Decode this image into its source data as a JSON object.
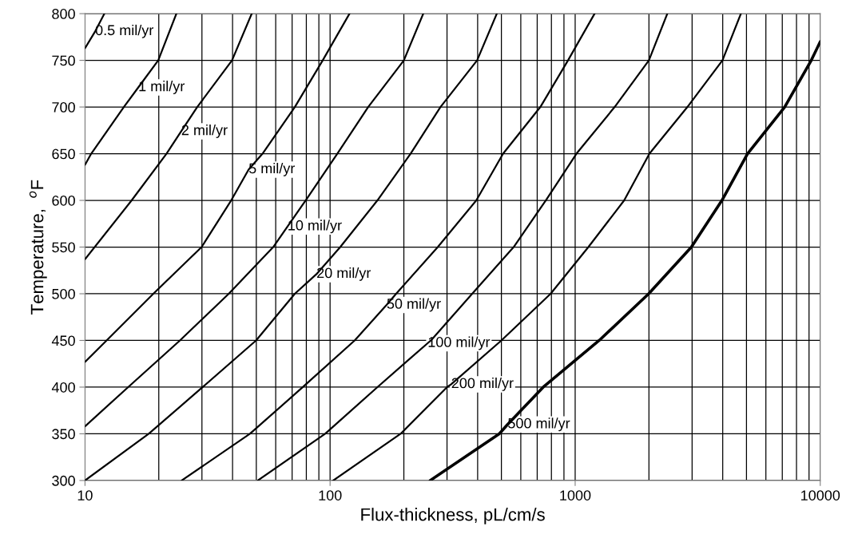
{
  "chart_data": {
    "type": "line",
    "xlabel": "Flux-thickness, pL/cm/s",
    "ylabel": "Temperature,  $^{o}$F",
    "log": "x",
    "xlim": [
      10,
      10000
    ],
    "xticks": [
      10,
      100,
      1000,
      10000
    ],
    "ylim": [
      300,
      800
    ],
    "yticks": [
      300,
      350,
      400,
      450,
      500,
      550,
      600,
      650,
      700,
      750,
      800
    ],
    "grid": true,
    "marker": "none",
    "line_style": "solid",
    "series": [
      {
        "color": "#000000",
        "x": [
          10,
          11,
          12
        ],
        "values": [
          763,
          781,
          800
        ]
      },
      {
        "color": "#000000",
        "x": [
          10,
          10.6,
          14.4,
          16.5,
          19.9,
          23.6
        ],
        "values": [
          638,
          650,
          700,
          721,
          750,
          800
        ]
      },
      {
        "color": "#000000",
        "x": [
          10,
          15.5,
          21.5,
          24.7,
          28.7,
          39.8,
          47.9
        ],
        "values": [
          537,
          600,
          650,
          674,
          700,
          750,
          800
        ]
      },
      {
        "color": "#000000",
        "x": [
          10,
          12.25,
          19,
          29.9,
          39.5,
          46.5,
          53,
          71.8,
          93.3,
          120
        ],
        "values": [
          427,
          450,
          500,
          550,
          600,
          633,
          650,
          700,
          750,
          800
        ]
      },
      {
        "color": "#000000",
        "x": [
          10,
          15,
          24.4,
          38.6,
          58.6,
          67,
          79.5,
          107,
          143,
          200,
          240
        ],
        "values": [
          358,
          400,
          450,
          500,
          550,
          572,
          600,
          650,
          700,
          750,
          800
        ]
      },
      {
        "color": "#000000",
        "x": [
          10,
          18.2,
          30.2,
          49.9,
          71.8,
          88,
          110,
          156,
          213,
          282,
          398,
          479
        ],
        "values": [
          300,
          350,
          400,
          450,
          500,
          521,
          550,
          600,
          650,
          700,
          750,
          800
        ]
      },
      {
        "color": "#000000",
        "x": [
          24.8,
          47.1,
          77.4,
          126,
          170,
          186,
          275,
          395,
          508,
          721,
          935,
          1200
        ],
        "values": [
          300,
          350,
          400,
          450,
          488,
          500,
          550,
          600,
          650,
          700,
          750,
          800
        ]
      },
      {
        "color": "#000000",
        "x": [
          50.7,
          95.5,
          156,
          250,
          258,
          380,
          561,
          759,
          1012,
          1449,
          1999,
          2377
        ],
        "values": [
          300,
          350,
          400,
          447,
          450,
          500,
          550,
          600,
          650,
          700,
          750,
          800
        ]
      },
      {
        "color": "#000000",
        "x": [
          103,
          194,
          300,
          312,
          500,
          794,
          1132,
          1585,
          2009,
          2870,
          3990,
          4745
        ],
        "values": [
          300,
          350,
          400,
          403,
          450,
          500,
          550,
          600,
          650,
          700,
          750,
          800
        ]
      },
      {
        "color": "#000000",
        "x": [
          256,
          490,
          530,
          741,
          1253,
          1995,
          2980,
          3970,
          5050,
          7160,
          9190,
          10000
        ],
        "values": [
          300,
          350,
          360,
          400,
          450,
          500,
          550,
          600,
          650,
          700,
          750,
          770
        ]
      }
    ],
    "annotations": [
      {
        "text": "0.5 mil/yr",
        "x": 11,
        "y": 781
      },
      {
        "text": "1 mil/yr",
        "x": 16.5,
        "y": 721
      },
      {
        "text": "2 mil/yr",
        "x": 24.7,
        "y": 674
      },
      {
        "text": "5 mil/yr",
        "x": 46.5,
        "y": 633
      },
      {
        "text": "10 mil/yr",
        "x": 67,
        "y": 572
      },
      {
        "text": "20 mil/yr",
        "x": 88,
        "y": 521
      },
      {
        "text": "50 mil/yr",
        "x": 170,
        "y": 488
      },
      {
        "text": "100 mil/yr",
        "x": 250,
        "y": 447
      },
      {
        "text": "200 mil/yr",
        "x": 312,
        "y": 403
      },
      {
        "text": "500 mil/yr",
        "x": 530,
        "y": 360
      }
    ]
  }
}
